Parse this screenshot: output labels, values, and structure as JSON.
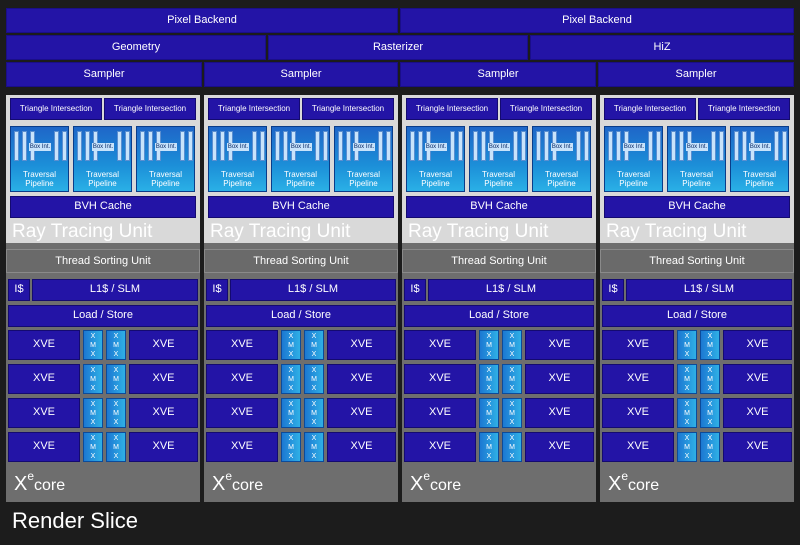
{
  "top": {
    "pixel_backend": [
      "Pixel Backend",
      "Pixel Backend"
    ],
    "geometry": "Geometry",
    "rasterizer": "Rasterizer",
    "hiz": "HiZ",
    "samplers": [
      "Sampler",
      "Sampler",
      "Sampler",
      "Sampler"
    ]
  },
  "core": {
    "triangle_intersection": "Triangle Intersection",
    "box_int": "Box Int.",
    "traversal_pipeline": "Traversal Pipeline",
    "bvh_cache": "BVH Cache",
    "ray_tracing_unit": "Ray Tracing Unit",
    "thread_sorting_unit": "Thread Sorting Unit",
    "icache": "I$",
    "l1_slm": "L1$ / SLM",
    "load_store": "Load / Store",
    "xve": "XVE",
    "xmx": "XMX",
    "xecore_x": "X",
    "xecore_e": "e",
    "xecore_core": "core"
  },
  "footer": {
    "render_slice": "Render Slice"
  },
  "colors": {
    "unit_blue": "#2314a6",
    "xmx_blue": "#2fb0e6",
    "background": "#1c1c1c"
  }
}
